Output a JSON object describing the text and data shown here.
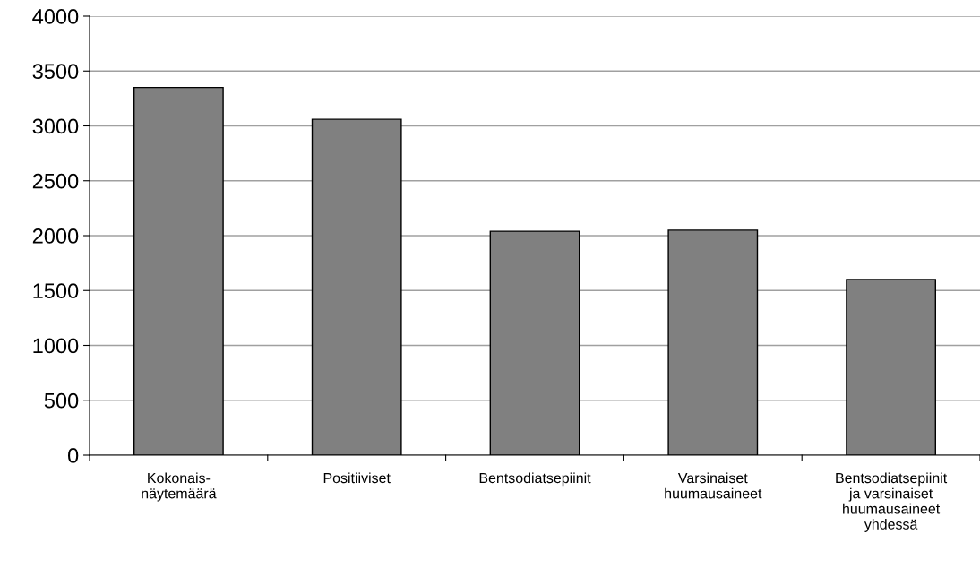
{
  "chart_data": {
    "type": "bar",
    "categories": [
      "Kokonais-\nnäytemäärä",
      "Positiiviset",
      "Bentsodiatsepiinit",
      "Varsinaiset\nhuumausaineet",
      "Bentsodiatsepiinit\nja varsinaiset\nhuumausaineet\nyhdessä"
    ],
    "values": [
      3350,
      3060,
      2040,
      2050,
      1600
    ],
    "color": "#808080",
    "ylim": [
      0,
      4000
    ],
    "yticks": [
      0,
      500,
      1000,
      1500,
      2000,
      2500,
      3000,
      3500,
      4000
    ],
    "grid": "y",
    "legend": false
  }
}
